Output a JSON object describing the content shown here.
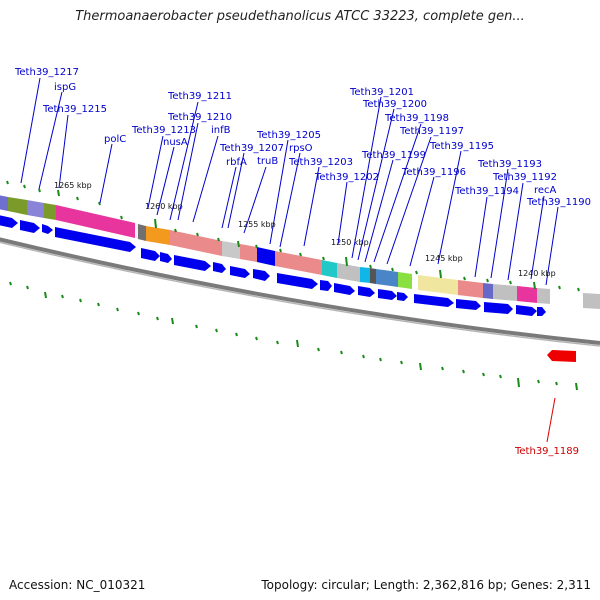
{
  "title": "Thermoanaerobacter pseudethanolicus ATCC 33223, complete gen...",
  "footer": {
    "accession": "Accession: NC_010321",
    "summary": "Topology: circular; Length: 2,362,816 bp; Genes: 2,311"
  },
  "colors": {
    "label": "#0000cc",
    "selected": "#dd0000",
    "gene": "#0000ee",
    "tick": "#1a8a1a",
    "backbone": "#7a7a7a"
  },
  "ruler_labels": [
    "1265 kbp",
    "1260 kbp",
    "1255 kbp",
    "1250 kbp",
    "1245 kbp",
    "1240 kbp"
  ],
  "gene_labels": [
    {
      "name": "Teth39_1217"
    },
    {
      "name": "ispG"
    },
    {
      "name": "Teth39_1215"
    },
    {
      "name": "polC"
    },
    {
      "name": "Teth39_1213"
    },
    {
      "name": "nusA"
    },
    {
      "name": "Teth39_1211"
    },
    {
      "name": "Teth39_1210"
    },
    {
      "name": "infB"
    },
    {
      "name": "rbfA"
    },
    {
      "name": "Teth39_1207"
    },
    {
      "name": "truB"
    },
    {
      "name": "Teth39_1205"
    },
    {
      "name": "rpsO"
    },
    {
      "name": "Teth39_1203"
    },
    {
      "name": "Teth39_1202"
    },
    {
      "name": "Teth39_1201"
    },
    {
      "name": "Teth39_1200"
    },
    {
      "name": "Teth39_1199"
    },
    {
      "name": "Teth39_1198"
    },
    {
      "name": "Teth39_1197"
    },
    {
      "name": "Teth39_1196"
    },
    {
      "name": "Teth39_1195"
    },
    {
      "name": "Teth39_1194"
    },
    {
      "name": "Teth39_1193"
    },
    {
      "name": "Teth39_1192"
    },
    {
      "name": "recA"
    },
    {
      "name": "Teth39_1190"
    },
    {
      "name": "Teth39_1189",
      "selected": true
    }
  ]
}
